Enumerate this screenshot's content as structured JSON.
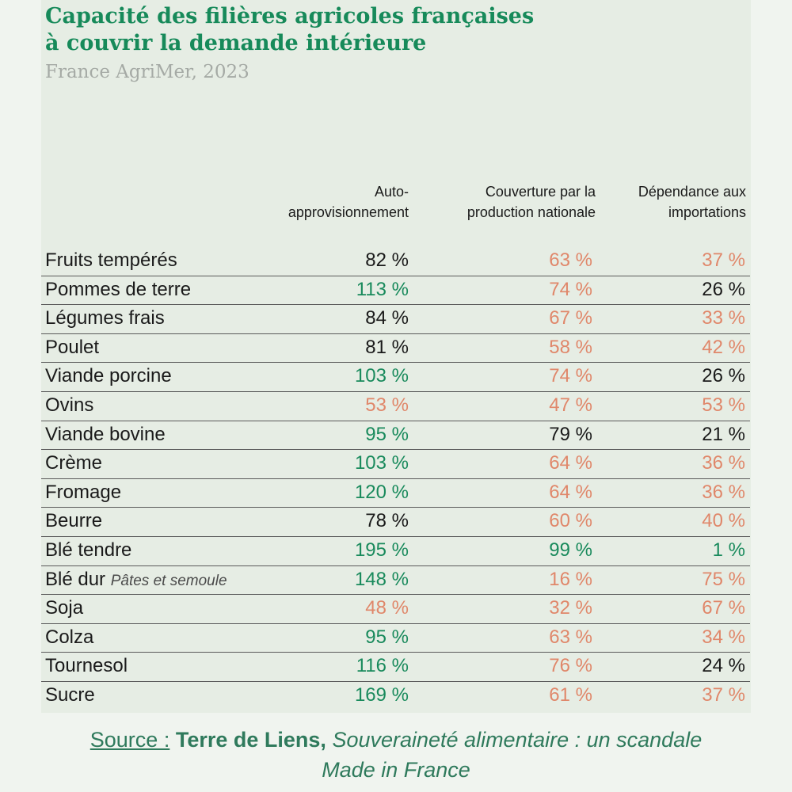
{
  "colors": {
    "title": "#178a5a",
    "above": "#198a5c",
    "below": "#e0876a",
    "neutral": "#1a1a1a",
    "source": "#2f7a5c"
  },
  "chart_data": {
    "type": "table",
    "title_line1": "Capacité des filières agricoles françaises",
    "title_line2": "à couvrir la demande intérieure",
    "subtitle": "France AgriMer, 2023",
    "columns": [
      {
        "line1": "Auto-",
        "line2": "approvisionnement"
      },
      {
        "line1": "Couverture par la",
        "line2": "production nationale"
      },
      {
        "line1": "Dépendance aux",
        "line2": "importations"
      }
    ],
    "rows": [
      {
        "label": "Fruits tempérés",
        "note": "",
        "values": [
          "82 %",
          "63 %",
          "37 %"
        ],
        "tones": [
          "black",
          "orange",
          "orange"
        ]
      },
      {
        "label": "Pommes de terre",
        "note": "",
        "values": [
          "113 %",
          "74 %",
          "26 %"
        ],
        "tones": [
          "green",
          "orange",
          "black"
        ]
      },
      {
        "label": "Légumes frais",
        "note": "",
        "values": [
          "84 %",
          "67 %",
          "33 %"
        ],
        "tones": [
          "black",
          "orange",
          "orange"
        ]
      },
      {
        "label": "Poulet",
        "note": "",
        "values": [
          "81 %",
          "58 %",
          "42 %"
        ],
        "tones": [
          "black",
          "orange",
          "orange"
        ]
      },
      {
        "label": "Viande porcine",
        "note": "",
        "values": [
          "103 %",
          "74 %",
          "26 %"
        ],
        "tones": [
          "green",
          "orange",
          "black"
        ]
      },
      {
        "label": "Ovins",
        "note": "",
        "values": [
          "53 %",
          "47 %",
          "53 %"
        ],
        "tones": [
          "orange",
          "orange",
          "orange"
        ]
      },
      {
        "label": "Viande bovine",
        "note": "",
        "values": [
          "95 %",
          "79 %",
          "21 %"
        ],
        "tones": [
          "green",
          "black",
          "black"
        ]
      },
      {
        "label": "Crème",
        "note": "",
        "values": [
          "103 %",
          "64 %",
          "36 %"
        ],
        "tones": [
          "green",
          "orange",
          "orange"
        ]
      },
      {
        "label": "Fromage",
        "note": "",
        "values": [
          "120 %",
          "64 %",
          "36 %"
        ],
        "tones": [
          "green",
          "orange",
          "orange"
        ]
      },
      {
        "label": "Beurre",
        "note": "",
        "values": [
          "78 %",
          "60 %",
          "40 %"
        ],
        "tones": [
          "black",
          "orange",
          "orange"
        ]
      },
      {
        "label": "Blé tendre",
        "note": "",
        "values": [
          "195 %",
          "99 %",
          "1 %"
        ],
        "tones": [
          "green",
          "green",
          "green"
        ]
      },
      {
        "label": "Blé dur",
        "note": "Pâtes et semoule",
        "values": [
          "148 %",
          "16 %",
          "75 %"
        ],
        "tones": [
          "green",
          "orange",
          "orange"
        ]
      },
      {
        "label": "Soja",
        "note": "",
        "values": [
          "48 %",
          "32 %",
          "67 %"
        ],
        "tones": [
          "orange",
          "orange",
          "orange"
        ]
      },
      {
        "label": "Colza",
        "note": "",
        "values": [
          "95 %",
          "63 %",
          "34 %"
        ],
        "tones": [
          "green",
          "orange",
          "orange"
        ]
      },
      {
        "label": "Tournesol",
        "note": "",
        "values": [
          "116 %",
          "76 %",
          "24 %"
        ],
        "tones": [
          "green",
          "orange",
          "black"
        ]
      },
      {
        "label": "Sucre",
        "note": "",
        "values": [
          "169 %",
          "61 %",
          "37 %"
        ],
        "tones": [
          "green",
          "orange",
          "orange"
        ]
      }
    ]
  },
  "source": {
    "label": "Source :",
    "organization": "Terre de Liens,",
    "publication_line1": "Souveraineté alimentaire : un scandale",
    "publication_line2": "Made in France"
  }
}
